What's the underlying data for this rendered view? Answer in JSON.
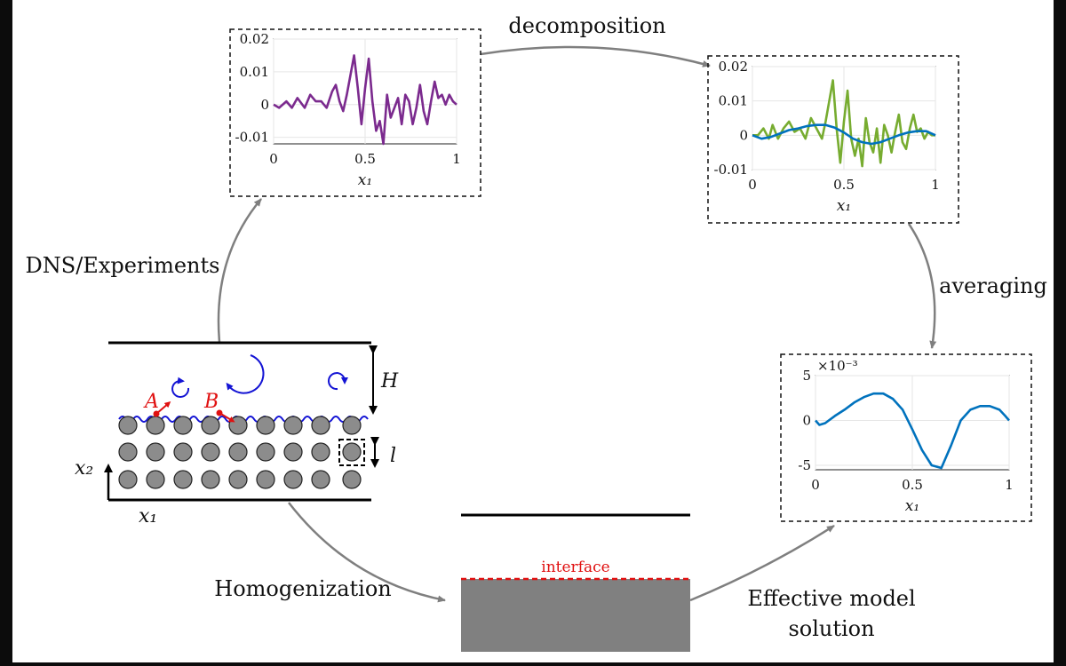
{
  "labels": {
    "decomposition": "decomposition",
    "dns": "DNS/Experiments",
    "averaging": "averaging",
    "homogenization": "Homogenization",
    "effective_line1": "Effective model",
    "effective_line2": "solution",
    "interface": "interface"
  },
  "geometry_labels": {
    "H": "H",
    "l": "l",
    "A": "A",
    "B": "B",
    "x2": "x₂",
    "x1": "x₁"
  },
  "colors": {
    "purple": "#7b2a8e",
    "green": "#77ac30",
    "blue": "#0072bd",
    "red": "#e01010",
    "arrow": "#7f7f7f",
    "porous": "#808080"
  },
  "chart_data": [
    {
      "type": "line",
      "name": "raw-signal",
      "xlabel": "x₁",
      "ylabel": "",
      "xlim": [
        0,
        1
      ],
      "ylim": [
        -0.012,
        0.02
      ],
      "xticks": [
        "0",
        "0.5",
        "1"
      ],
      "yticks": [
        "0.02",
        "0.01",
        "0",
        "-0.01"
      ],
      "ytick_values": [
        0.02,
        0.01,
        0,
        -0.01
      ],
      "series": [
        {
          "name": "signal",
          "color": "#7b2a8e",
          "x": [
            0,
            0.03,
            0.07,
            0.1,
            0.13,
            0.17,
            0.2,
            0.23,
            0.26,
            0.29,
            0.32,
            0.34,
            0.36,
            0.38,
            0.4,
            0.42,
            0.44,
            0.46,
            0.48,
            0.5,
            0.52,
            0.54,
            0.56,
            0.58,
            0.6,
            0.62,
            0.64,
            0.66,
            0.68,
            0.7,
            0.72,
            0.74,
            0.76,
            0.78,
            0.8,
            0.82,
            0.84,
            0.86,
            0.88,
            0.9,
            0.92,
            0.94,
            0.96,
            0.98,
            1.0
          ],
          "y": [
            0,
            -0.001,
            0.001,
            -0.001,
            0.002,
            -0.001,
            0.003,
            0.001,
            0.001,
            -0.001,
            0.004,
            0.006,
            0.001,
            -0.002,
            0.003,
            0.009,
            0.015,
            0.005,
            -0.006,
            0.005,
            0.014,
            0.001,
            -0.008,
            -0.005,
            -0.012,
            0.003,
            -0.004,
            -0.001,
            0.002,
            -0.006,
            0.003,
            0.001,
            -0.006,
            -0.001,
            0.006,
            -0.002,
            -0.006,
            0.001,
            0.007,
            0.002,
            0.003,
            0.0,
            0.003,
            0.001,
            0.0
          ]
        }
      ]
    },
    {
      "type": "line",
      "name": "decomposed-signal",
      "xlabel": "x₁",
      "ylabel": "",
      "xlim": [
        0,
        1
      ],
      "ylim": [
        -0.01,
        0.02
      ],
      "xticks": [
        "0",
        "0.5",
        "1"
      ],
      "yticks": [
        "0.02",
        "0.01",
        "0",
        "-0.01"
      ],
      "ytick_values": [
        0.02,
        0.01,
        0,
        -0.01
      ],
      "series": [
        {
          "name": "fluctuation",
          "color": "#77ac30",
          "x": [
            0,
            0.03,
            0.06,
            0.09,
            0.11,
            0.14,
            0.17,
            0.2,
            0.23,
            0.26,
            0.29,
            0.32,
            0.35,
            0.38,
            0.4,
            0.42,
            0.44,
            0.46,
            0.48,
            0.5,
            0.52,
            0.54,
            0.56,
            0.58,
            0.6,
            0.62,
            0.64,
            0.66,
            0.68,
            0.7,
            0.72,
            0.74,
            0.76,
            0.78,
            0.8,
            0.82,
            0.84,
            0.86,
            0.88,
            0.9,
            0.92,
            0.94,
            0.96,
            0.98,
            1.0
          ],
          "y": [
            0,
            0.0,
            0.002,
            -0.001,
            0.003,
            -0.001,
            0.002,
            0.004,
            0.001,
            0.002,
            -0.001,
            0.005,
            0.002,
            -0.001,
            0.004,
            0.01,
            0.016,
            0.002,
            -0.008,
            0.004,
            0.013,
            -0.001,
            -0.006,
            -0.001,
            -0.009,
            0.005,
            -0.002,
            -0.005,
            0.002,
            -0.008,
            0.003,
            0.0,
            -0.005,
            0.001,
            0.006,
            -0.002,
            -0.004,
            0.002,
            0.006,
            0.001,
            0.002,
            -0.001,
            0.001,
            0.0,
            0.0
          ]
        },
        {
          "name": "mean",
          "color": "#0072bd",
          "x": [
            0,
            0.05,
            0.1,
            0.15,
            0.2,
            0.25,
            0.3,
            0.35,
            0.4,
            0.45,
            0.5,
            0.55,
            0.6,
            0.65,
            0.7,
            0.75,
            0.8,
            0.85,
            0.9,
            0.95,
            1.0
          ],
          "y": [
            0,
            -0.001,
            -0.0005,
            0.0005,
            0.0015,
            0.002,
            0.0027,
            0.003,
            0.003,
            0.0022,
            0.0008,
            -0.001,
            -0.002,
            -0.0025,
            -0.002,
            -0.001,
            0.0,
            0.0008,
            0.0012,
            0.0012,
            0.0
          ]
        }
      ]
    },
    {
      "type": "line",
      "name": "averaged-signal",
      "xlabel": "x₁",
      "ylabel": "",
      "scale_label": "×10⁻³",
      "xlim": [
        0,
        1
      ],
      "ylim": [
        -5.5,
        5
      ],
      "xticks": [
        "0",
        "0.5",
        "1"
      ],
      "yticks": [
        "5",
        "0",
        "-5"
      ],
      "ytick_values": [
        5,
        0,
        -5
      ],
      "series": [
        {
          "name": "averaged",
          "color": "#0072bd",
          "x": [
            0,
            0.02,
            0.05,
            0.1,
            0.15,
            0.2,
            0.25,
            0.3,
            0.35,
            0.4,
            0.45,
            0.5,
            0.55,
            0.6,
            0.65,
            0.7,
            0.75,
            0.8,
            0.85,
            0.9,
            0.95,
            0.98,
            1.0
          ],
          "y": [
            0,
            -0.5,
            -0.3,
            0.5,
            1.2,
            2.0,
            2.6,
            3.0,
            3.0,
            2.4,
            1.2,
            -1.0,
            -3.3,
            -5.0,
            -5.3,
            -2.8,
            0.0,
            1.2,
            1.6,
            1.6,
            1.2,
            0.5,
            0
          ]
        }
      ]
    }
  ]
}
